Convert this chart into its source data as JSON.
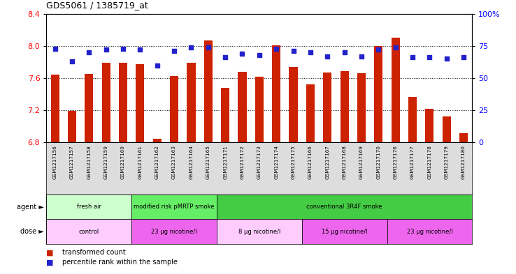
{
  "title": "GDS5061 / 1385719_at",
  "samples": [
    "GSM1217156",
    "GSM1217157",
    "GSM1217158",
    "GSM1217159",
    "GSM1217160",
    "GSM1217161",
    "GSM1217162",
    "GSM1217163",
    "GSM1217164",
    "GSM1217165",
    "GSM1217171",
    "GSM1217172",
    "GSM1217173",
    "GSM1217174",
    "GSM1217175",
    "GSM1217166",
    "GSM1217167",
    "GSM1217168",
    "GSM1217169",
    "GSM1217170",
    "GSM1217176",
    "GSM1217177",
    "GSM1217178",
    "GSM1217179",
    "GSM1217180"
  ],
  "bar_values": [
    7.64,
    7.19,
    7.65,
    7.79,
    7.79,
    7.77,
    6.85,
    7.63,
    7.79,
    8.07,
    7.48,
    7.68,
    7.62,
    8.01,
    7.74,
    7.52,
    7.67,
    7.69,
    7.66,
    8.0,
    8.1,
    7.37,
    7.22,
    7.12,
    6.92
  ],
  "percentile_values": [
    73,
    63,
    70,
    72,
    73,
    72,
    60,
    71,
    74,
    74,
    66,
    69,
    68,
    73,
    71,
    70,
    67,
    70,
    67,
    72,
    74,
    66,
    66,
    65,
    66
  ],
  "ylim_left": [
    6.8,
    8.4
  ],
  "ylim_right": [
    0,
    100
  ],
  "yticks_left": [
    6.8,
    7.2,
    7.6,
    8.0,
    8.4
  ],
  "yticks_right": [
    0,
    25,
    50,
    75,
    100
  ],
  "ytick_labels_right": [
    "0",
    "25",
    "50",
    "75",
    "100%"
  ],
  "bar_color": "#cc2200",
  "dot_color": "#2222cc",
  "agent_groups": [
    {
      "label": "fresh air",
      "start": 0,
      "end": 5,
      "color": "#ccffcc"
    },
    {
      "label": "modified risk pMRTP smoke",
      "start": 5,
      "end": 10,
      "color": "#66ee66"
    },
    {
      "label": "conventional 3R4F smoke",
      "start": 10,
      "end": 25,
      "color": "#44cc44"
    }
  ],
  "dose_groups": [
    {
      "label": "control",
      "start": 0,
      "end": 5,
      "color": "#ffccff"
    },
    {
      "label": "23 μg nicotine/l",
      "start": 5,
      "end": 10,
      "color": "#ee66ee"
    },
    {
      "label": "8 μg nicotine/l",
      "start": 10,
      "end": 15,
      "color": "#ffccff"
    },
    {
      "label": "15 μg nicotine/l",
      "start": 15,
      "end": 20,
      "color": "#ee66ee"
    },
    {
      "label": "23 μg nicotine/l",
      "start": 20,
      "end": 25,
      "color": "#ee66ee"
    }
  ],
  "legend_items": [
    {
      "label": "transformed count",
      "color": "#cc2200"
    },
    {
      "label": "percentile rank within the sample",
      "color": "#2222cc"
    }
  ],
  "bg_color": "#ffffff",
  "plot_bg_color": "#ffffff",
  "tick_area_bg": "#dddddd"
}
